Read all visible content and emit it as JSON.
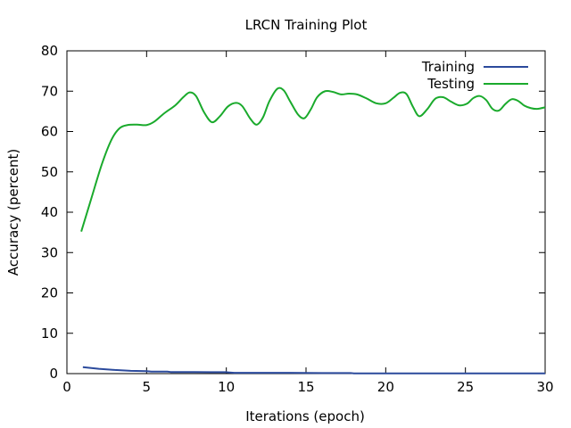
{
  "chart_data": {
    "type": "line",
    "title": "LRCN Training Plot",
    "xlabel": "Iterations (epoch)",
    "ylabel": "Accuracy (percent)",
    "xlim": [
      0,
      30
    ],
    "ylim": [
      0,
      80
    ],
    "xticks": [
      0,
      5,
      10,
      15,
      20,
      25,
      30
    ],
    "yticks": [
      0,
      10,
      20,
      30,
      40,
      50,
      60,
      70,
      80
    ],
    "grid": false,
    "legend_position": "top-right",
    "series": [
      {
        "name": "Training",
        "color": "#2b4a9c",
        "x": [
          1,
          2,
          3,
          4,
          5,
          5.3,
          6,
          6.3,
          6.5,
          7,
          8,
          9,
          10,
          10.5,
          12,
          14,
          16,
          17.8,
          18,
          20,
          22,
          24,
          26,
          28,
          30
        ],
        "y": [
          1.6,
          1.2,
          0.9,
          0.7,
          0.6,
          0.5,
          0.5,
          0.5,
          0.4,
          0.4,
          0.4,
          0.35,
          0.35,
          0.2,
          0.2,
          0.2,
          0.15,
          0.15,
          0.05,
          0.05,
          0.05,
          0.05,
          0.05,
          0.05,
          0.05
        ]
      },
      {
        "name": "Testing",
        "color": "#1aaa2c",
        "x": [
          0.9,
          1.5,
          2.2,
          2.8,
          3.3,
          3.8,
          4.4,
          5.0,
          5.5,
          6.1,
          6.8,
          7.3,
          7.7,
          8.1,
          8.6,
          9.1,
          9.6,
          10.1,
          10.6,
          11.0,
          11.5,
          11.9,
          12.3,
          12.7,
          13.2,
          13.6,
          14.0,
          14.5,
          14.9,
          15.3,
          15.7,
          16.2,
          16.7,
          17.2,
          17.7,
          18.2,
          18.8,
          19.4,
          20.0,
          20.5,
          20.9,
          21.3,
          21.7,
          22.1,
          22.6,
          23.1,
          23.6,
          24.1,
          24.6,
          25.1,
          25.5,
          25.9,
          26.3,
          26.7,
          27.1,
          27.5,
          27.9,
          28.3,
          28.7,
          29.1,
          29.5,
          30.0
        ],
        "y": [
          35.2,
          43,
          52,
          58,
          60.8,
          61.6,
          61.7,
          61.6,
          62.5,
          64.5,
          66.5,
          68.5,
          69.7,
          68.8,
          64.8,
          62.3,
          63.8,
          66.2,
          67.1,
          66.3,
          63.2,
          61.7,
          63.5,
          67.5,
          70.6,
          70.2,
          67.5,
          64.2,
          63.3,
          65.5,
          68.5,
          70.0,
          69.8,
          69.2,
          69.4,
          69.2,
          68.2,
          67.0,
          67.0,
          68.4,
          69.6,
          69.3,
          66.2,
          63.8,
          65.5,
          68.1,
          68.5,
          67.4,
          66.5,
          66.9,
          68.3,
          68.8,
          67.8,
          65.6,
          65.2,
          66.8,
          68.0,
          67.6,
          66.4,
          65.8,
          65.6,
          66.0
        ]
      }
    ]
  }
}
